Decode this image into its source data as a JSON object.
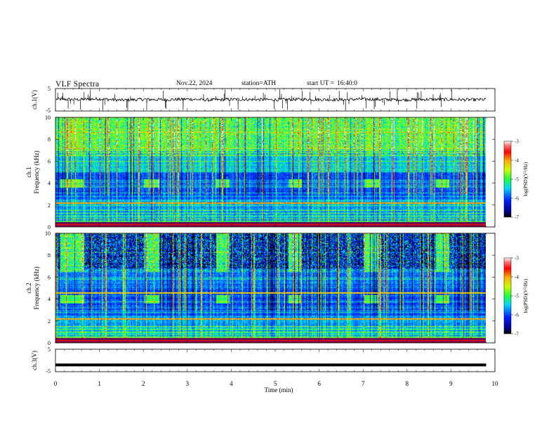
{
  "header": {
    "title": "VLF  Spectra",
    "date": "Nov.22, 2024",
    "station": "station=ATH",
    "start_label": "start  UT  =",
    "start_time": "16:40:0"
  },
  "chart_data": [
    {
      "id": "ch1-waveform",
      "type": "line",
      "ylabel": "ch.1(V)",
      "ylim": [
        -5,
        5
      ],
      "yticks": [
        5,
        -5
      ],
      "xlim": [
        0,
        10
      ],
      "x_minutes": [
        0,
        0.5,
        1,
        1.5,
        2,
        2.5,
        3,
        3.5,
        4,
        4.5,
        5,
        5.5,
        6,
        6.5,
        7,
        7.5,
        8,
        8.5,
        9,
        9.5,
        9.8
      ],
      "values": [
        0.3,
        0.1,
        0.4,
        -0.2,
        0.2,
        0.0,
        0.3,
        -0.1,
        0.2,
        0.1,
        0.0,
        0.2,
        0.1,
        0.0,
        0.3,
        0.1,
        0.0,
        0.2,
        0.1,
        0.0,
        0.1
      ],
      "data_end_minute": 9.8
    },
    {
      "id": "ch1-spectrogram",
      "type": "heatmap",
      "ylabel": "ch.1\nFrequency  (kHz)",
      "ylim": [
        0,
        10
      ],
      "yticks": [
        0,
        2,
        4,
        6,
        8,
        10
      ],
      "xlim": [
        0,
        10
      ],
      "colorbar": {
        "label": "log(PSD)(V²/Hz)",
        "range": [
          -7,
          -3
        ],
        "ticks": [
          -3,
          -4,
          -5,
          -6,
          -7
        ]
      },
      "transmitter_blocks_min": [
        [
          0.1,
          0.65
        ],
        [
          2.0,
          2.35
        ],
        [
          3.65,
          3.95
        ],
        [
          5.3,
          5.6
        ],
        [
          7.0,
          7.35
        ],
        [
          8.65,
          8.95
        ]
      ],
      "block_band_khz": [
        3.6,
        4.4
      ]
    },
    {
      "id": "ch2-spectrogram",
      "type": "heatmap",
      "ylabel": "ch.2\nFrequency  (kHz)",
      "ylim": [
        0,
        10
      ],
      "yticks": [
        0,
        2,
        4,
        6,
        8,
        10
      ],
      "xlim": [
        0,
        10
      ],
      "colorbar": {
        "label": "log(PSD)(V²/Hz)",
        "range": [
          -7,
          -3
        ],
        "ticks": [
          -3,
          -4,
          -5,
          -6,
          -7
        ]
      },
      "transmitter_blocks_min": [
        [
          0.1,
          0.65
        ],
        [
          2.0,
          2.35
        ],
        [
          3.65,
          3.95
        ],
        [
          5.3,
          5.6
        ],
        [
          7.0,
          7.35
        ],
        [
          8.65,
          8.95
        ]
      ],
      "block_band_khz": [
        3.6,
        4.4
      ]
    },
    {
      "id": "ch3-waveform",
      "type": "line",
      "ylabel": "ch.3(V)",
      "ylim": [
        -5,
        5
      ],
      "yticks": [
        5,
        -5
      ],
      "xlim": [
        0,
        10
      ],
      "x_minutes": [
        0,
        9.8
      ],
      "values": [
        -2,
        -2
      ],
      "data_end_minute": 9.8
    }
  ],
  "xaxis": {
    "label": "Time  (min)",
    "ticks": [
      "0",
      "1",
      "2",
      "3",
      "4",
      "5",
      "6",
      "7",
      "8",
      "9",
      "10"
    ]
  }
}
